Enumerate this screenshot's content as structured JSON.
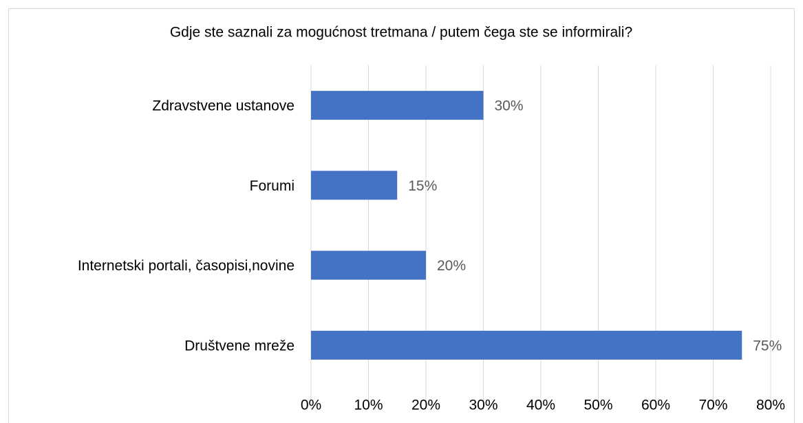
{
  "chart_data": {
    "type": "bar",
    "orientation": "horizontal",
    "title": "Gdje ste saznali za mogućnost tretmana / putem čega ste se informirali?",
    "categories": [
      "Zdravstvene ustanove",
      "Forumi",
      "Internetski portali, časopisi,novine",
      "Društvene mreže"
    ],
    "values": [
      30,
      15,
      20,
      75
    ],
    "value_labels": [
      "30%",
      "15%",
      "20%",
      "75%"
    ],
    "color": "#4472c4",
    "xlim": [
      0,
      80
    ],
    "xticks": [
      {
        "value": 0,
        "label": "0%"
      },
      {
        "value": 10,
        "label": "10%"
      },
      {
        "value": 20,
        "label": "20%"
      },
      {
        "value": 30,
        "label": "30%"
      },
      {
        "value": 40,
        "label": "40%"
      },
      {
        "value": 50,
        "label": "50%"
      },
      {
        "value": 60,
        "label": "60%"
      },
      {
        "value": 70,
        "label": "70%"
      },
      {
        "value": 80,
        "label": "80%"
      }
    ],
    "grid": true
  }
}
